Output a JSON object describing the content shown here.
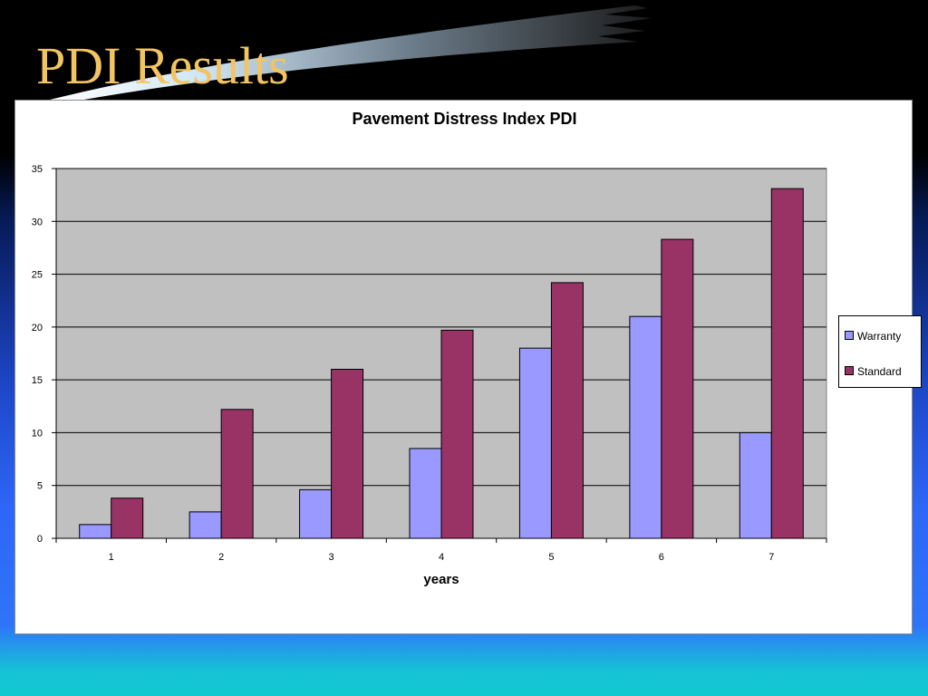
{
  "slide": {
    "title": "PDI Results"
  },
  "colors": {
    "title": "#f2c462",
    "warranty": "#9999ff",
    "standard": "#993366",
    "plot_area": "#c0c0c0"
  },
  "chart_data": {
    "type": "bar",
    "title": "Pavement Distress Index  PDI",
    "xlabel": "years",
    "ylabel": "",
    "categories": [
      "1",
      "2",
      "3",
      "4",
      "5",
      "6",
      "7"
    ],
    "series": [
      {
        "name": "Warranty",
        "color": "#9999ff",
        "values": [
          1.3,
          2.5,
          4.6,
          8.5,
          18,
          21,
          10
        ]
      },
      {
        "name": "Standard",
        "color": "#993366",
        "values": [
          3.8,
          12.2,
          16,
          19.7,
          24.2,
          28.3,
          33.1
        ]
      }
    ],
    "ylim": [
      0,
      35
    ],
    "yticks": [
      "0",
      "5",
      "10",
      "15",
      "20",
      "25",
      "30",
      "35"
    ],
    "grid": true,
    "legend_position": "right"
  }
}
